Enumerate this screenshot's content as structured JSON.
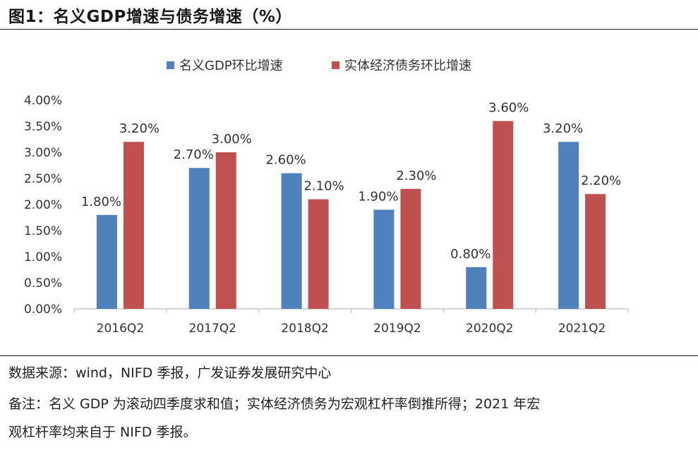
{
  "figure": {
    "title": "图1：名义GDP增速与债务增速（%）"
  },
  "notes": {
    "source": "数据来源：wind，NIFD 季报，广发证券发展研究中心",
    "remark_line1": "备注：名义 GDP 为滚动四季度求和值；实体经济债务为宏观杠杆率倒推所得；2021 年宏",
    "remark_line2": "观杠杆率均来自于 NIFD 季报。"
  },
  "chart_data": {
    "type": "bar",
    "categories": [
      "2016Q2",
      "2017Q2",
      "2018Q2",
      "2019Q2",
      "2020Q2",
      "2021Q2"
    ],
    "series": [
      {
        "name": "名义GDP环比增速",
        "color": "#4f81bd",
        "values": [
          1.8,
          2.7,
          2.6,
          1.9,
          0.8,
          3.2
        ],
        "labels": [
          "1.80%",
          "2.70%",
          "2.60%",
          "1.90%",
          "0.80%",
          "3.20%"
        ]
      },
      {
        "name": "实体经济债务环比增速",
        "color": "#c0504d",
        "values": [
          3.2,
          3.0,
          2.1,
          2.3,
          3.6,
          2.2
        ],
        "labels": [
          "3.20%",
          "3.00%",
          "2.10%",
          "2.30%",
          "3.60%",
          "2.20%"
        ]
      }
    ],
    "ylim": [
      0,
      4
    ],
    "yticks": [
      0,
      0.5,
      1,
      1.5,
      2,
      2.5,
      3,
      3.5,
      4
    ],
    "ytick_labels": [
      "0.00%",
      "0.50%",
      "1.00%",
      "1.50%",
      "2.00%",
      "2.50%",
      "3.00%",
      "3.50%",
      "4.00%"
    ],
    "grid": false,
    "legend": "top-center"
  }
}
